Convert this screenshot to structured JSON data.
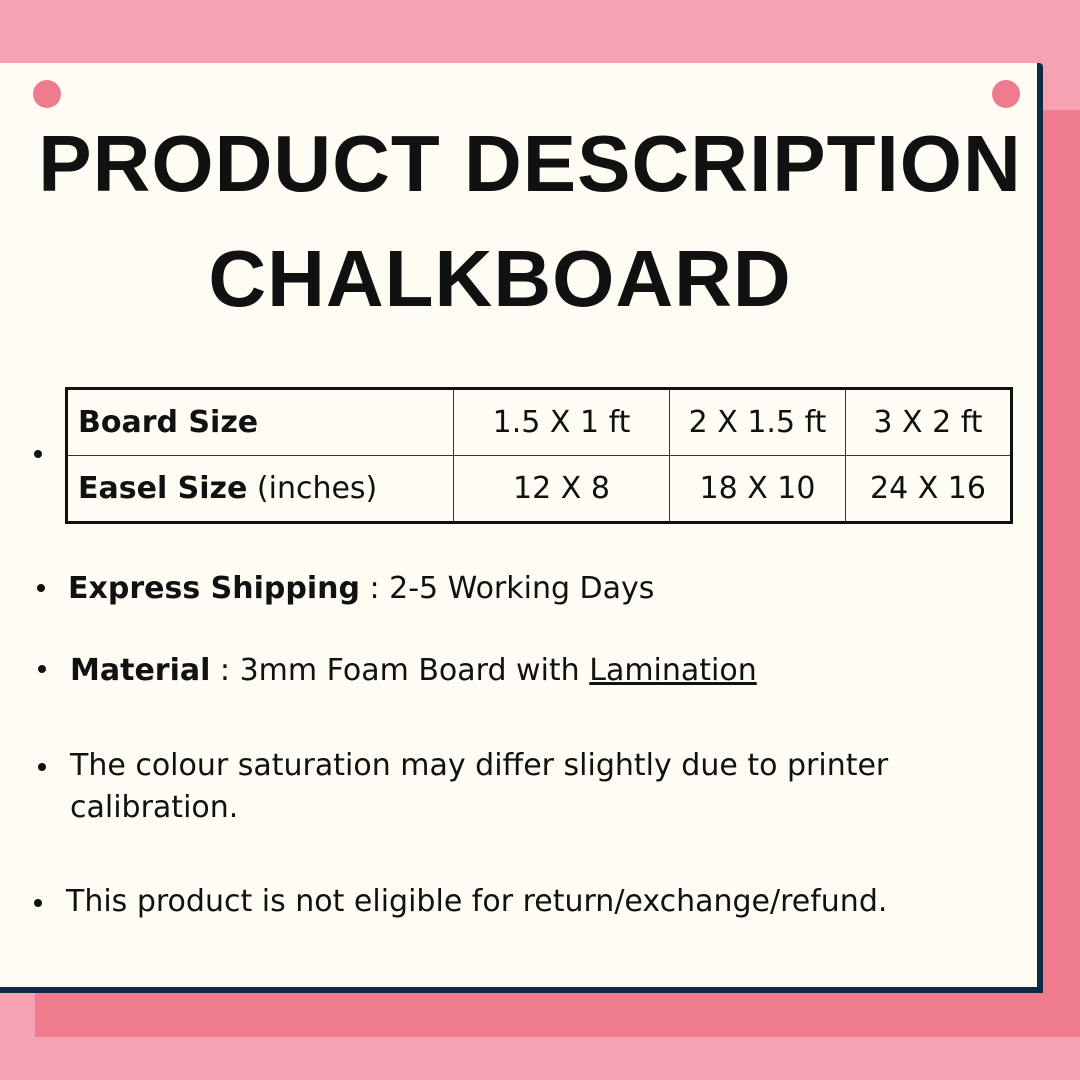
{
  "colors": {
    "background": "#f7a2b2",
    "shadow": "#ef7b8e",
    "card": "#fefcf3",
    "border": "#0c2a45"
  },
  "title": "PRODUCT DESCRIPTION",
  "subtitle": "CHALKBOARD",
  "table": {
    "rows": [
      {
        "label": "Board Size",
        "suffix": "",
        "values": [
          "1.5 X 1 ft",
          "2 X 1.5 ft",
          "3 X 2 ft"
        ]
      },
      {
        "label": "Easel Size",
        "suffix": " (inches)",
        "values": [
          "12 X 8",
          "18 X 10",
          "24 X 16"
        ]
      }
    ]
  },
  "bullets": {
    "shipping": {
      "label": "Express Shipping",
      "sep": " : ",
      "text": "2-5 Working Days"
    },
    "material": {
      "label": "Material",
      "sep": " : ",
      "text": "3mm Foam Board with ",
      "link": "Lamination"
    },
    "colour": {
      "line1": "The colour saturation may differ slightly due to printer",
      "line2": "calibration."
    },
    "returns": {
      "text": "This product is not eligible for return/exchange/refund."
    }
  }
}
